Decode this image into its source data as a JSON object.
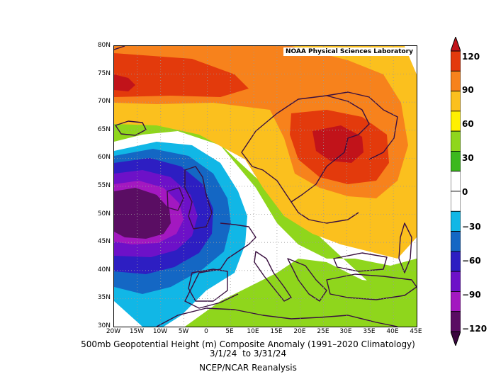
{
  "credit": "NOAA Physical Sciences Laboratory",
  "title_line1": "500mb Geopotential Height (m) Composite Anomaly (1991–2020 Climatology)",
  "title_line2": "3/1/24  to 3/31/24",
  "source": "NCEP/NCAR Reanalysis",
  "lat_labels": [
    "80N",
    "75N",
    "70N",
    "65N",
    "60N",
    "55N",
    "50N",
    "45N",
    "40N",
    "35N",
    "30N"
  ],
  "lon_labels": [
    "20W",
    "15W",
    "10W",
    "5W",
    "0",
    "5E",
    "10E",
    "15E",
    "20E",
    "25E",
    "30E",
    "35E",
    "40E",
    "45E"
  ],
  "colorbar": {
    "labels": [
      "120",
      "90",
      "60",
      "30",
      "0",
      "−30",
      "−60",
      "−90",
      "−120"
    ],
    "colors_top_to_bottom": [
      "#e33a0c",
      "#f7821c",
      "#fbc01e",
      "#fff000",
      "#8fd61c",
      "#3cb81e",
      "#ffffff",
      "#ffffff",
      "#11b7e6",
      "#1467c4",
      "#2d1ec2",
      "#6d11c8",
      "#a318c0",
      "#5a0d63"
    ]
  }
}
